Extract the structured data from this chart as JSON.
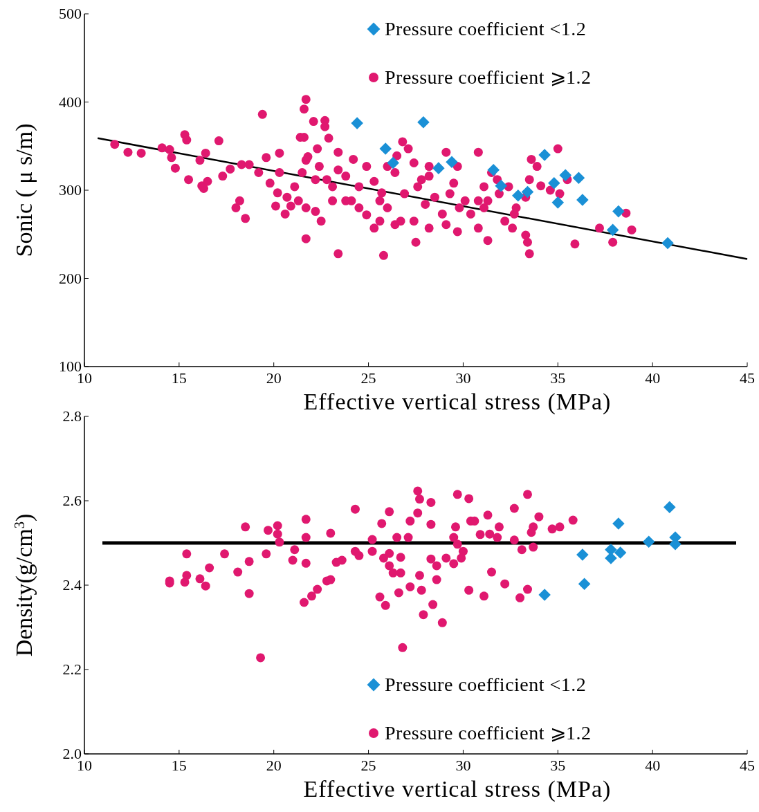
{
  "chart_data": [
    {
      "type": "scatter",
      "xlabel": "Effective vertical stress (MPa)",
      "ylabel": "Sonic ( μ s/m)",
      "xlim": [
        10,
        45
      ],
      "xticks": [
        10,
        15,
        20,
        25,
        30,
        35,
        40,
        45
      ],
      "ylim": [
        100,
        500
      ],
      "yticks": [
        100,
        200,
        300,
        400,
        500
      ],
      "grid": false,
      "legend": "top right",
      "series": [
        {
          "name": "Pressure coefficient <1.2",
          "color": "#1a90d6",
          "marker": "diamond",
          "x": [
            24.4,
            27.9,
            25.9,
            26.3,
            29.4,
            28.7,
            31.6,
            32.0,
            34.3,
            35.4,
            36.1,
            34.8,
            36.3,
            35.0,
            32.9,
            33.4,
            38.2,
            37.9,
            40.8
          ],
          "values": [
            376,
            377,
            347,
            331,
            332,
            325,
            323,
            305,
            340,
            317,
            314,
            308,
            289,
            286,
            294,
            298,
            276,
            255,
            240
          ]
        },
        {
          "name": "Pressure coefficient ⩾1.2",
          "color": "#e0186f",
          "marker": "circle",
          "x": [
            11.6,
            12.3,
            13.0,
            14.1,
            14.5,
            14.6,
            14.8,
            15.3,
            15.4,
            15.5,
            16.1,
            16.4,
            16.2,
            16.5,
            16.3,
            17.1,
            17.3,
            17.7,
            18.0,
            18.2,
            18.5,
            18.3,
            18.7,
            19.4,
            19.2,
            19.6,
            19.8,
            20.3,
            20.2,
            20.1,
            20.3,
            20.7,
            20.6,
            20.9,
            21.1,
            21.5,
            21.7,
            21.8,
            21.4,
            21.6,
            21.7,
            21.6,
            22.1,
            22.7,
            22.7,
            22.9,
            22.2,
            22.4,
            22.8,
            23.1,
            23.4,
            23.8,
            24.1,
            24.5,
            24.9,
            25.3,
            25.6,
            25.7,
            26.0,
            26.4,
            26.5,
            26.8,
            27.1,
            27.4,
            27.6,
            27.8,
            28.2,
            28.5,
            28.9,
            29.1,
            29.5,
            29.7,
            30.1,
            30.4,
            30.8,
            31.1,
            31.3,
            31.5,
            31.9,
            32.2,
            32.8,
            33.3,
            33.5,
            33.6,
            33.9,
            34.1,
            34.6,
            35.0,
            35.1,
            35.5,
            35.9,
            37.2,
            37.9,
            38.6,
            38.9,
            21.7,
            23.4,
            25.8,
            31.3,
            33.5,
            33.4,
            27.5,
            25.6,
            26.4,
            24.5,
            23.8,
            23.1,
            22.2,
            21.3,
            28.2,
            29.1,
            29.7,
            30.8,
            32.6,
            33.3,
            26.9,
            28.0,
            30.8,
            28.2,
            26.7,
            25.3,
            27.4,
            24.9,
            22.5,
            21.7,
            31.1,
            32.4,
            29.3,
            29.8,
            31.8,
            32.7,
            26.0,
            24.2,
            23.4,
            22.3
          ],
          "values": [
            352,
            343,
            342,
            348,
            346,
            337,
            325,
            363,
            357,
            312,
            334,
            342,
            305,
            310,
            302,
            356,
            316,
            324,
            280,
            288,
            268,
            329,
            329,
            386,
            320,
            337,
            308,
            320,
            297,
            282,
            342,
            292,
            273,
            282,
            304,
            320,
            334,
            338,
            360,
            360,
            403,
            392,
            378,
            379,
            372,
            359,
            312,
            327,
            312,
            304,
            323,
            316,
            288,
            304,
            327,
            310,
            288,
            297,
            280,
            320,
            339,
            355,
            347,
            331,
            304,
            312,
            316,
            292,
            273,
            343,
            308,
            327,
            288,
            273,
            343,
            304,
            288,
            320,
            296,
            265,
            280,
            292,
            312,
            335,
            327,
            305,
            300,
            347,
            296,
            312,
            239,
            257,
            241,
            274,
            255,
            245,
            228,
            226,
            243,
            228,
            241,
            241,
            265,
            261,
            280,
            288,
            288,
            276,
            288,
            257,
            261,
            253,
            257,
            257,
            249,
            296,
            284,
            288,
            327,
            265,
            257,
            265,
            272,
            265,
            280,
            280,
            304,
            296,
            280,
            312,
            273,
            327,
            335,
            343,
            347
          ]
        },
        {
          "type": "line",
          "color": "#000000",
          "marker": "none",
          "x": [
            10.7,
            45
          ],
          "values": [
            359,
            222
          ]
        }
      ]
    },
    {
      "type": "scatter",
      "xlabel": "Effective vertical stress (MPa)",
      "ylabel": "Density(g/cm$^{3}$)",
      "xlim": [
        10,
        45
      ],
      "xticks": [
        10,
        15,
        20,
        25,
        30,
        35,
        40,
        45
      ],
      "ylim": [
        2.0,
        2.8
      ],
      "yticks": [
        {
          "value": 2.0,
          "label": "2.0"
        },
        2.2,
        2.4,
        2.6,
        2.8
      ],
      "grid": false,
      "legend": "bottom right",
      "ref_lines": [
        {
          "axis": "y",
          "value": 2.5,
          "color": "#000000"
        }
      ],
      "series": [
        {
          "name": "Pressure coefficient <1.2",
          "color": "#1a90d6",
          "marker": "diamond",
          "x": [
            40.9,
            38.2,
            39.8,
            41.2,
            41.2,
            36.3,
            37.8,
            38.3,
            37.8,
            36.4,
            34.3
          ],
          "values": [
            2.585,
            2.546,
            2.503,
            2.513,
            2.497,
            2.472,
            2.484,
            2.477,
            2.464,
            2.403,
            2.377
          ]
        },
        {
          "name": "Pressure coefficient ⩾1.2",
          "color": "#e0186f",
          "marker": "circle",
          "x": [
            14.5,
            14.5,
            15.3,
            15.4,
            15.4,
            16.1,
            16.4,
            16.6,
            17.4,
            18.1,
            18.5,
            18.7,
            18.7,
            19.3,
            19.6,
            19.7,
            20.2,
            20.2,
            20.3,
            21.0,
            21.1,
            21.7,
            21.7,
            21.7,
            21.6,
            22.0,
            22.3,
            22.8,
            23.0,
            23.0,
            23.3,
            23.6,
            24.3,
            24.3,
            24.5,
            25.2,
            25.2,
            25.7,
            25.6,
            25.9,
            26.1,
            26.1,
            25.8,
            26.1,
            26.3,
            26.7,
            26.7,
            26.6,
            26.8,
            26.5,
            27.1,
            27.2,
            27.2,
            27.6,
            27.7,
            28.3,
            29.7,
            30.3,
            33.4,
            27.6,
            28.3,
            29.6,
            30.4,
            30.6,
            31.3,
            32.7,
            34.0,
            31.9,
            33.7,
            33.6,
            34.7,
            35.1,
            35.8,
            29.5,
            30.9,
            31.4,
            31.8,
            32.7,
            29.7,
            30.0,
            33.1,
            33.7,
            28.3,
            28.6,
            29.1,
            29.5,
            29.9,
            27.7,
            28.6,
            27.8,
            28.4,
            31.5,
            30.3,
            32.2,
            31.1,
            33.0,
            33.4,
            28.9,
            27.9
          ],
          "values": [
            2.41,
            2.405,
            2.407,
            2.423,
            2.474,
            2.415,
            2.398,
            2.441,
            2.474,
            2.431,
            2.538,
            2.456,
            2.38,
            2.228,
            2.474,
            2.53,
            2.541,
            2.521,
            2.502,
            2.459,
            2.484,
            2.556,
            2.513,
            2.452,
            2.359,
            2.374,
            2.39,
            2.41,
            2.413,
            2.523,
            2.454,
            2.459,
            2.58,
            2.48,
            2.47,
            2.508,
            2.48,
            2.546,
            2.372,
            2.352,
            2.574,
            2.475,
            2.464,
            2.446,
            2.429,
            2.429,
            2.466,
            2.382,
            2.252,
            2.513,
            2.513,
            2.552,
            2.396,
            2.623,
            2.604,
            2.596,
            2.615,
            2.605,
            2.615,
            2.571,
            2.544,
            2.538,
            2.552,
            2.552,
            2.566,
            2.582,
            2.562,
            2.538,
            2.538,
            2.525,
            2.533,
            2.538,
            2.554,
            2.513,
            2.52,
            2.521,
            2.513,
            2.507,
            2.497,
            2.48,
            2.484,
            2.49,
            2.462,
            2.446,
            2.464,
            2.451,
            2.464,
            2.423,
            2.413,
            2.388,
            2.354,
            2.431,
            2.388,
            2.403,
            2.374,
            2.37,
            2.39,
            2.311,
            2.33
          ]
        }
      ]
    }
  ]
}
